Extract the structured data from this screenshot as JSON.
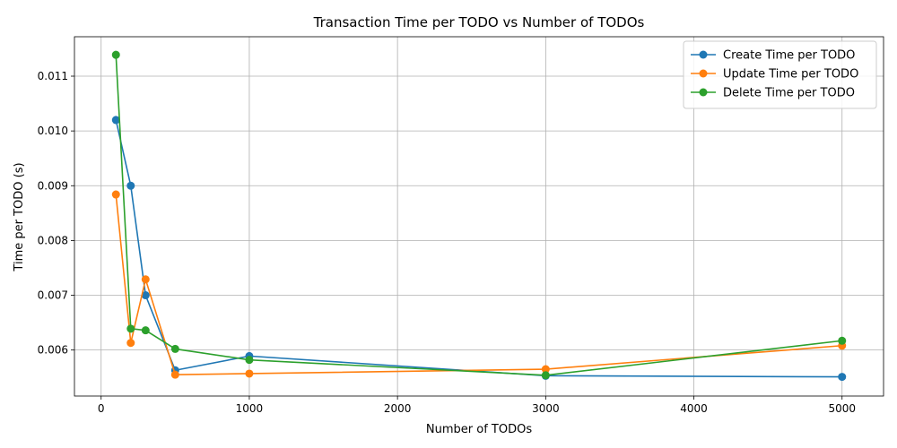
{
  "chart_data": {
    "type": "line",
    "title": "Transaction Time per TODO vs Number of TODOs",
    "xlabel": "Number of TODOs",
    "ylabel": "Time per TODO (s)",
    "x": [
      100,
      200,
      300,
      500,
      1000,
      3000,
      5000
    ],
    "xlim": [
      -180,
      5280
    ],
    "ylim": [
      0.00516,
      0.01172
    ],
    "xticks": [
      0,
      1000,
      2000,
      3000,
      4000,
      5000
    ],
    "yticks": [
      0.006,
      0.007,
      0.008,
      0.009,
      0.01,
      0.011
    ],
    "xtick_labels": [
      "0",
      "1000",
      "2000",
      "3000",
      "4000",
      "5000"
    ],
    "ytick_labels": [
      "0.006",
      "0.007",
      "0.008",
      "0.009",
      "0.010",
      "0.011"
    ],
    "grid": true,
    "legend_position": "top-right",
    "series": [
      {
        "name": "Create Time per TODO",
        "color": "#1f77b4",
        "marker": "circle",
        "values": [
          0.0102,
          0.009,
          0.007,
          0.00563,
          0.00589,
          0.00553,
          0.00551
        ]
      },
      {
        "name": "Update Time per TODO",
        "color": "#ff7f0e",
        "marker": "circle",
        "values": [
          0.00884,
          0.00613,
          0.00729,
          0.00555,
          0.00557,
          0.00565,
          0.00608
        ]
      },
      {
        "name": "Delete Time per TODO",
        "color": "#2ca02c",
        "marker": "circle",
        "values": [
          0.01139,
          0.00639,
          0.00636,
          0.00602,
          0.00582,
          0.00554,
          0.00617
        ]
      }
    ]
  }
}
